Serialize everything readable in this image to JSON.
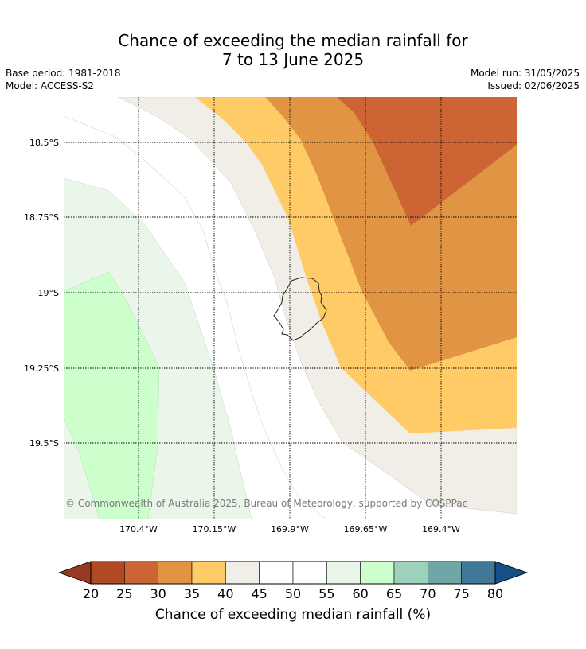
{
  "title": {
    "line1": "Chance of exceeding the median rainfall for",
    "line2": "7 to 13 June 2025"
  },
  "meta_left": {
    "base_period": "Base period: 1981-2018",
    "model": "Model: ACCESS-S2"
  },
  "meta_right": {
    "model_run": "Model run: 31/05/2025",
    "issued": "Issued: 02/06/2025"
  },
  "map": {
    "latitude_labels": [
      "18.5°S",
      "18.75°S",
      "19°S",
      "19.25°S",
      "19.5°S"
    ],
    "longitude_labels": [
      "170.4°W",
      "170.15°W",
      "169.9°W",
      "169.65°W",
      "169.4°W"
    ],
    "copyright": "© Commonwealth of Australia 2025, Bureau of Meteorology, supported by COSPPac"
  },
  "colorbar": {
    "ticks": [
      "20",
      "25",
      "30",
      "35",
      "40",
      "45",
      "50",
      "55",
      "60",
      "65",
      "70",
      "75",
      "80"
    ],
    "colors": [
      "#b04a25",
      "#cc6533",
      "#e09444",
      "#fecb66",
      "#f1ede7",
      "#ffffff",
      "#ffffff",
      "#ebf6ea",
      "#ccffcc",
      "#9dd1bc",
      "#6fa7a6",
      "#417898"
    ],
    "low_extend_color": "#963b22",
    "high_extend_color": "#164f86",
    "label": "Chance of exceeding median rainfall (%)"
  }
}
